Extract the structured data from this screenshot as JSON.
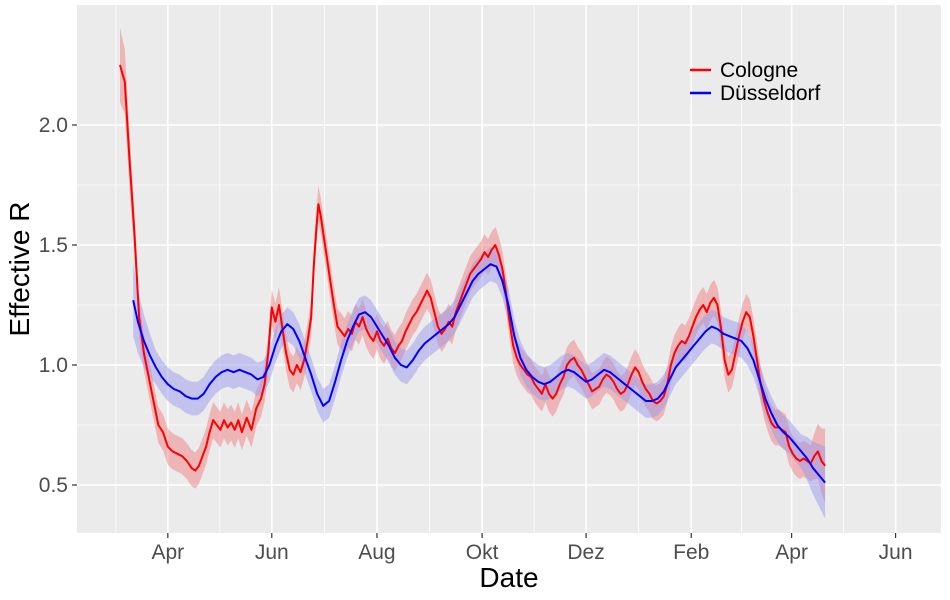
{
  "chart_data": {
    "type": "line",
    "xlabel": "Date",
    "ylabel": "Effective R",
    "x_unit": "weeks",
    "x_ticks": [
      {
        "week": 4.0,
        "label": "Apr"
      },
      {
        "week": 12.7,
        "label": "Jun"
      },
      {
        "week": 21.5,
        "label": "Aug"
      },
      {
        "week": 30.3,
        "label": "Okt"
      },
      {
        "week": 39.0,
        "label": "Dez"
      },
      {
        "week": 47.8,
        "label": "Feb"
      },
      {
        "week": 56.2,
        "label": "Apr"
      },
      {
        "week": 64.9,
        "label": "Jun"
      }
    ],
    "xlim": [
      -3.6,
      68.7
    ],
    "yticks": [
      0.5,
      1.0,
      1.5,
      2.0
    ],
    "ytick_labels": [
      "0.5",
      "1.0",
      "1.5",
      "2.0"
    ],
    "ylim": [
      0.3,
      2.5
    ],
    "grid": true,
    "legend": "top-right",
    "series": [
      {
        "name": "Cologne",
        "color": "#ff0000",
        "band_color": "#f08080",
        "points": [
          [
            0.0,
            2.25
          ],
          [
            0.4,
            2.18
          ],
          [
            0.8,
            1.85
          ],
          [
            1.2,
            1.55
          ],
          [
            1.6,
            1.2
          ],
          [
            2.0,
            1.05
          ],
          [
            2.4,
            0.95
          ],
          [
            2.8,
            0.85
          ],
          [
            3.2,
            0.75
          ],
          [
            3.6,
            0.72
          ],
          [
            4.0,
            0.66
          ],
          [
            4.4,
            0.64
          ],
          [
            4.8,
            0.63
          ],
          [
            5.2,
            0.62
          ],
          [
            5.6,
            0.6
          ],
          [
            6.0,
            0.57
          ],
          [
            6.3,
            0.56
          ],
          [
            6.6,
            0.58
          ],
          [
            6.9,
            0.62
          ],
          [
            7.2,
            0.66
          ],
          [
            7.5,
            0.72
          ],
          [
            7.8,
            0.77
          ],
          [
            8.1,
            0.75
          ],
          [
            8.4,
            0.73
          ],
          [
            8.7,
            0.77
          ],
          [
            9.0,
            0.74
          ],
          [
            9.3,
            0.76
          ],
          [
            9.6,
            0.73
          ],
          [
            9.9,
            0.77
          ],
          [
            10.2,
            0.72
          ],
          [
            10.6,
            0.78
          ],
          [
            11.0,
            0.73
          ],
          [
            11.4,
            0.82
          ],
          [
            11.8,
            0.86
          ],
          [
            12.1,
            0.92
          ],
          [
            12.4,
            1.05
          ],
          [
            12.7,
            1.24
          ],
          [
            13.0,
            1.18
          ],
          [
            13.3,
            1.25
          ],
          [
            13.6,
            1.15
          ],
          [
            13.9,
            1.05
          ],
          [
            14.2,
            0.98
          ],
          [
            14.5,
            0.96
          ],
          [
            14.8,
            1.0
          ],
          [
            15.1,
            0.97
          ],
          [
            15.4,
            1.02
          ],
          [
            15.7,
            1.1
          ],
          [
            16.0,
            1.2
          ],
          [
            16.2,
            1.4
          ],
          [
            16.4,
            1.55
          ],
          [
            16.6,
            1.67
          ],
          [
            16.8,
            1.62
          ],
          [
            17.0,
            1.55
          ],
          [
            17.3,
            1.45
          ],
          [
            17.6,
            1.35
          ],
          [
            17.9,
            1.25
          ],
          [
            18.2,
            1.16
          ],
          [
            18.5,
            1.14
          ],
          [
            18.8,
            1.12
          ],
          [
            19.1,
            1.15
          ],
          [
            19.4,
            1.13
          ],
          [
            19.7,
            1.18
          ],
          [
            20.0,
            1.16
          ],
          [
            20.3,
            1.2
          ],
          [
            20.6,
            1.15
          ],
          [
            20.9,
            1.12
          ],
          [
            21.2,
            1.1
          ],
          [
            21.5,
            1.14
          ],
          [
            21.8,
            1.1
          ],
          [
            22.1,
            1.08
          ],
          [
            22.4,
            1.11
          ],
          [
            22.7,
            1.07
          ],
          [
            23.0,
            1.05
          ],
          [
            23.3,
            1.08
          ],
          [
            23.6,
            1.1
          ],
          [
            23.9,
            1.14
          ],
          [
            24.2,
            1.17
          ],
          [
            24.5,
            1.2
          ],
          [
            24.8,
            1.22
          ],
          [
            25.1,
            1.25
          ],
          [
            25.4,
            1.28
          ],
          [
            25.7,
            1.31
          ],
          [
            26.0,
            1.28
          ],
          [
            26.3,
            1.22
          ],
          [
            26.6,
            1.16
          ],
          [
            26.9,
            1.13
          ],
          [
            27.2,
            1.15
          ],
          [
            27.5,
            1.18
          ],
          [
            27.8,
            1.16
          ],
          [
            28.1,
            1.22
          ],
          [
            28.4,
            1.26
          ],
          [
            28.7,
            1.3
          ],
          [
            29.0,
            1.34
          ],
          [
            29.3,
            1.38
          ],
          [
            29.6,
            1.4
          ],
          [
            29.9,
            1.42
          ],
          [
            30.2,
            1.44
          ],
          [
            30.5,
            1.47
          ],
          [
            30.8,
            1.45
          ],
          [
            31.1,
            1.48
          ],
          [
            31.4,
            1.5
          ],
          [
            31.7,
            1.46
          ],
          [
            32.0,
            1.4
          ],
          [
            32.3,
            1.3
          ],
          [
            32.6,
            1.18
          ],
          [
            32.9,
            1.08
          ],
          [
            33.2,
            1.03
          ],
          [
            33.5,
            1.0
          ],
          [
            33.8,
            0.98
          ],
          [
            34.1,
            0.96
          ],
          [
            34.4,
            0.95
          ],
          [
            34.7,
            0.92
          ],
          [
            35.0,
            0.9
          ],
          [
            35.3,
            0.88
          ],
          [
            35.6,
            0.92
          ],
          [
            35.9,
            0.88
          ],
          [
            36.2,
            0.86
          ],
          [
            36.5,
            0.88
          ],
          [
            36.8,
            0.92
          ],
          [
            37.1,
            0.95
          ],
          [
            37.4,
            1.0
          ],
          [
            37.7,
            1.02
          ],
          [
            38.0,
            1.03
          ],
          [
            38.3,
            1.0
          ],
          [
            38.6,
            0.98
          ],
          [
            38.9,
            0.95
          ],
          [
            39.2,
            0.92
          ],
          [
            39.5,
            0.89
          ],
          [
            39.8,
            0.9
          ],
          [
            40.1,
            0.91
          ],
          [
            40.4,
            0.94
          ],
          [
            40.7,
            0.96
          ],
          [
            41.0,
            0.95
          ],
          [
            41.3,
            0.93
          ],
          [
            41.6,
            0.9
          ],
          [
            41.9,
            0.88
          ],
          [
            42.2,
            0.89
          ],
          [
            42.5,
            0.92
          ],
          [
            42.8,
            0.96
          ],
          [
            43.1,
            0.99
          ],
          [
            43.4,
            0.97
          ],
          [
            43.7,
            0.93
          ],
          [
            44.0,
            0.9
          ],
          [
            44.3,
            0.88
          ],
          [
            44.6,
            0.85
          ],
          [
            44.9,
            0.84
          ],
          [
            45.2,
            0.85
          ],
          [
            45.5,
            0.87
          ],
          [
            45.8,
            0.92
          ],
          [
            46.1,
            1.0
          ],
          [
            46.4,
            1.05
          ],
          [
            46.7,
            1.08
          ],
          [
            47.0,
            1.1
          ],
          [
            47.3,
            1.09
          ],
          [
            47.6,
            1.12
          ],
          [
            47.9,
            1.16
          ],
          [
            48.2,
            1.2
          ],
          [
            48.5,
            1.23
          ],
          [
            48.8,
            1.25
          ],
          [
            49.1,
            1.22
          ],
          [
            49.4,
            1.26
          ],
          [
            49.7,
            1.28
          ],
          [
            50.0,
            1.25
          ],
          [
            50.3,
            1.15
          ],
          [
            50.6,
            1.02
          ],
          [
            50.9,
            0.96
          ],
          [
            51.2,
            0.98
          ],
          [
            51.5,
            1.05
          ],
          [
            51.8,
            1.12
          ],
          [
            52.1,
            1.18
          ],
          [
            52.4,
            1.22
          ],
          [
            52.7,
            1.2
          ],
          [
            53.0,
            1.12
          ],
          [
            53.3,
            1.02
          ],
          [
            53.6,
            0.92
          ],
          [
            53.9,
            0.85
          ],
          [
            54.2,
            0.8
          ],
          [
            54.5,
            0.76
          ],
          [
            54.8,
            0.74
          ],
          [
            55.1,
            0.74
          ],
          [
            55.4,
            0.73
          ],
          [
            55.7,
            0.72
          ],
          [
            56.0,
            0.66
          ],
          [
            56.3,
            0.63
          ],
          [
            56.6,
            0.61
          ],
          [
            56.9,
            0.6
          ],
          [
            57.2,
            0.61
          ],
          [
            57.5,
            0.6
          ],
          [
            57.8,
            0.59
          ],
          [
            58.1,
            0.62
          ],
          [
            58.4,
            0.64
          ],
          [
            58.7,
            0.6
          ],
          [
            59.0,
            0.58
          ]
        ]
      },
      {
        "name": "Düsseldorf",
        "color": "#0000ff",
        "band_color": "#9999ee",
        "points": [
          [
            1.1,
            1.27
          ],
          [
            1.5,
            1.18
          ],
          [
            2.0,
            1.1
          ],
          [
            2.5,
            1.04
          ],
          [
            3.0,
            0.99
          ],
          [
            3.5,
            0.95
          ],
          [
            4.0,
            0.92
          ],
          [
            4.5,
            0.9
          ],
          [
            5.0,
            0.89
          ],
          [
            5.5,
            0.87
          ],
          [
            6.0,
            0.86
          ],
          [
            6.5,
            0.86
          ],
          [
            7.0,
            0.88
          ],
          [
            7.5,
            0.92
          ],
          [
            8.0,
            0.95
          ],
          [
            8.5,
            0.97
          ],
          [
            9.0,
            0.98
          ],
          [
            9.5,
            0.97
          ],
          [
            10.0,
            0.98
          ],
          [
            10.5,
            0.97
          ],
          [
            11.0,
            0.96
          ],
          [
            11.5,
            0.94
          ],
          [
            12.0,
            0.95
          ],
          [
            12.5,
            1.0
          ],
          [
            13.0,
            1.08
          ],
          [
            13.5,
            1.14
          ],
          [
            14.0,
            1.17
          ],
          [
            14.5,
            1.15
          ],
          [
            15.0,
            1.1
          ],
          [
            15.5,
            1.03
          ],
          [
            16.0,
            0.96
          ],
          [
            16.5,
            0.88
          ],
          [
            17.0,
            0.83
          ],
          [
            17.5,
            0.85
          ],
          [
            18.0,
            0.93
          ],
          [
            18.5,
            1.02
          ],
          [
            19.0,
            1.1
          ],
          [
            19.5,
            1.16
          ],
          [
            20.0,
            1.21
          ],
          [
            20.5,
            1.22
          ],
          [
            21.0,
            1.2
          ],
          [
            21.5,
            1.16
          ],
          [
            22.0,
            1.12
          ],
          [
            22.5,
            1.08
          ],
          [
            23.0,
            1.03
          ],
          [
            23.5,
            1.0
          ],
          [
            24.0,
            0.99
          ],
          [
            24.5,
            1.02
          ],
          [
            25.0,
            1.06
          ],
          [
            25.5,
            1.09
          ],
          [
            26.0,
            1.11
          ],
          [
            26.5,
            1.13
          ],
          [
            27.0,
            1.15
          ],
          [
            27.5,
            1.17
          ],
          [
            28.0,
            1.2
          ],
          [
            28.5,
            1.25
          ],
          [
            29.0,
            1.3
          ],
          [
            29.5,
            1.35
          ],
          [
            30.0,
            1.38
          ],
          [
            30.5,
            1.4
          ],
          [
            31.0,
            1.42
          ],
          [
            31.5,
            1.41
          ],
          [
            32.0,
            1.35
          ],
          [
            32.5,
            1.25
          ],
          [
            33.0,
            1.12
          ],
          [
            33.5,
            1.03
          ],
          [
            34.0,
            0.98
          ],
          [
            34.5,
            0.95
          ],
          [
            35.0,
            0.93
          ],
          [
            35.5,
            0.92
          ],
          [
            36.0,
            0.93
          ],
          [
            36.5,
            0.95
          ],
          [
            37.0,
            0.97
          ],
          [
            37.5,
            0.98
          ],
          [
            38.0,
            0.97
          ],
          [
            38.5,
            0.95
          ],
          [
            39.0,
            0.93
          ],
          [
            39.5,
            0.94
          ],
          [
            40.0,
            0.96
          ],
          [
            40.5,
            0.98
          ],
          [
            41.0,
            0.97
          ],
          [
            41.5,
            0.95
          ],
          [
            42.0,
            0.93
          ],
          [
            42.5,
            0.91
          ],
          [
            43.0,
            0.89
          ],
          [
            43.5,
            0.87
          ],
          [
            44.0,
            0.85
          ],
          [
            44.5,
            0.85
          ],
          [
            45.0,
            0.86
          ],
          [
            45.5,
            0.89
          ],
          [
            46.0,
            0.94
          ],
          [
            46.5,
            0.99
          ],
          [
            47.0,
            1.02
          ],
          [
            47.5,
            1.05
          ],
          [
            48.0,
            1.08
          ],
          [
            48.5,
            1.11
          ],
          [
            49.0,
            1.14
          ],
          [
            49.5,
            1.16
          ],
          [
            50.0,
            1.15
          ],
          [
            50.5,
            1.13
          ],
          [
            51.0,
            1.12
          ],
          [
            51.5,
            1.11
          ],
          [
            52.0,
            1.1
          ],
          [
            52.5,
            1.07
          ],
          [
            53.0,
            1.02
          ],
          [
            53.5,
            0.94
          ],
          [
            54.0,
            0.86
          ],
          [
            54.5,
            0.8
          ],
          [
            55.0,
            0.75
          ],
          [
            55.5,
            0.72
          ],
          [
            56.0,
            0.7
          ],
          [
            56.5,
            0.67
          ],
          [
            57.0,
            0.64
          ],
          [
            57.5,
            0.61
          ],
          [
            58.0,
            0.57
          ],
          [
            58.5,
            0.54
          ],
          [
            59.0,
            0.51
          ]
        ]
      }
    ]
  }
}
